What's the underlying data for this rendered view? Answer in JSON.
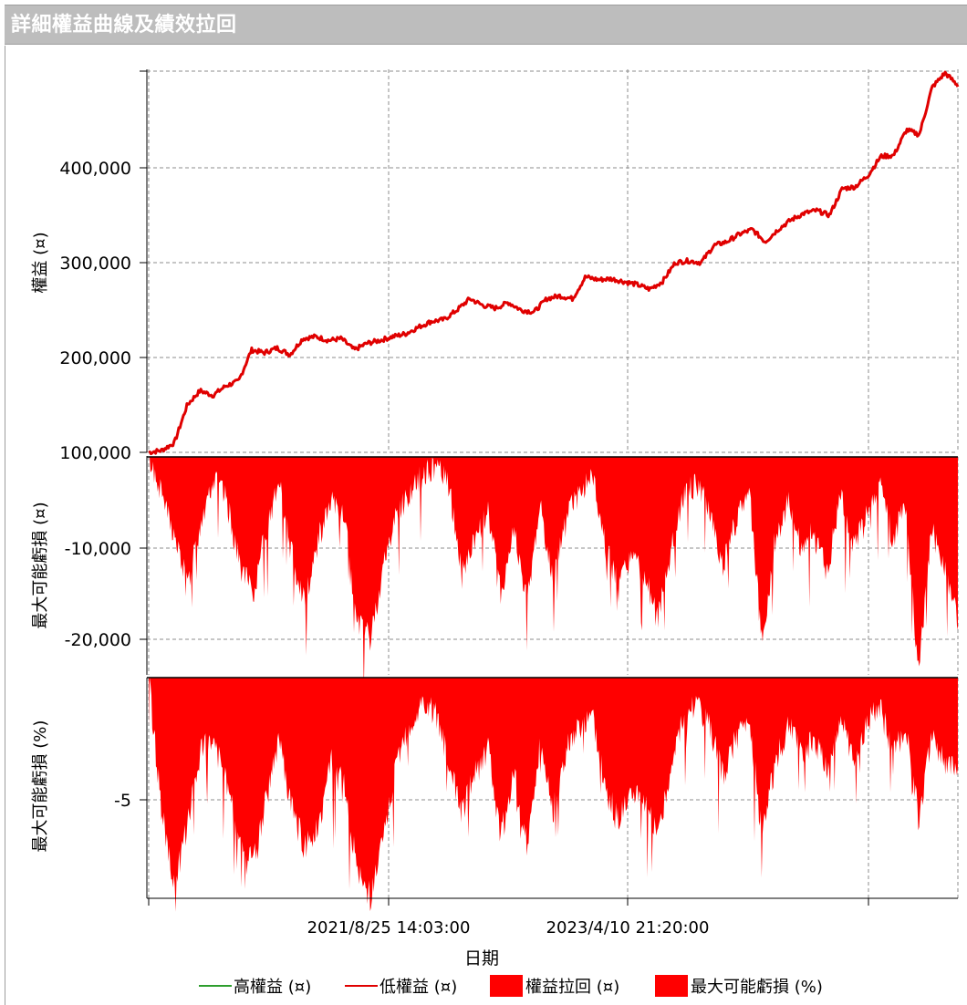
{
  "title": "詳細權益曲線及績效拉回",
  "chart_data": {
    "type": "area",
    "x_label": "日期",
    "x_ticks": [
      "2021/8/25 14:03:00",
      "2023/4/10 21:20:00"
    ],
    "panels": [
      {
        "name": "equity",
        "ylabel": "權益 (¤)",
        "yticks": [
          "100,000",
          "200,000",
          "300,000",
          "400,000"
        ],
        "ylim": [
          100000,
          500000
        ],
        "series": [
          {
            "name": "高權益 (¤)",
            "color": "#2e9e2e"
          },
          {
            "name": "低權益 (¤)",
            "color": "#e00000"
          }
        ],
        "values": [
          100000,
          102000,
          110000,
          150000,
          165000,
          160000,
          170000,
          175000,
          208000,
          205000,
          210000,
          203000,
          220000,
          222000,
          218000,
          220000,
          208000,
          215000,
          218000,
          222000,
          225000,
          232000,
          238000,
          240000,
          250000,
          262000,
          255000,
          252000,
          258000,
          250000,
          248000,
          262000,
          265000,
          262000,
          285000,
          282000,
          283000,
          280000,
          277000,
          272000,
          280000,
          300000,
          302000,
          300000,
          318000,
          322000,
          330000,
          335000,
          322000,
          335000,
          345000,
          352000,
          355000,
          350000,
          378000,
          380000,
          392000,
          412000,
          413000,
          440000,
          435000,
          485000,
          500000,
          487000
        ]
      },
      {
        "name": "drawdown_abs",
        "ylabel": "最大可能虧損 (¤)",
        "yticks": [
          "-10,000",
          "-20,000"
        ],
        "ylim": [
          -24000,
          0
        ],
        "series": [
          {
            "name": "權益拉回 (¤)",
            "color": "#ff0000"
          }
        ],
        "values": [
          0,
          -4000,
          -9000,
          -14000,
          -7000,
          -2000,
          -5000,
          -12000,
          -15000,
          -8000,
          -3000,
          -11000,
          -16000,
          -9000,
          -5000,
          -7000,
          -18000,
          -20000,
          -12000,
          -6000,
          -4000,
          -2000,
          -1000,
          -3000,
          -13000,
          -9000,
          -6000,
          -15000,
          -8000,
          -16000,
          -5000,
          -14000,
          -6000,
          -4000,
          -2000,
          -10000,
          -14000,
          -11000,
          -13000,
          -18000,
          -10000,
          -4000,
          -3000,
          -6000,
          -12000,
          -7000,
          -3000,
          -21000,
          -9000,
          -5000,
          -10000,
          -8000,
          -13000,
          -4000,
          -10000,
          -6000,
          -3000,
          -9000,
          -5000,
          -24000,
          -7000,
          -12000,
          -18000
        ]
      },
      {
        "name": "drawdown_pct",
        "ylabel": "最大可能虧損 (%)",
        "yticks": [
          "-5"
        ],
        "ylim": [
          -9,
          0
        ],
        "series": [
          {
            "name": "最大可能虧損 (%)",
            "color": "#ff0000"
          }
        ],
        "values": [
          0,
          -5.5,
          -8.5,
          -6,
          -3,
          -2.5,
          -4.5,
          -6.5,
          -7.5,
          -5,
          -2.5,
          -5.5,
          -7,
          -6,
          -3.5,
          -4.5,
          -8,
          -9,
          -6.5,
          -3.5,
          -2,
          -1,
          -1.5,
          -3.5,
          -5.5,
          -4,
          -3,
          -6.5,
          -4,
          -7,
          -2.5,
          -5.5,
          -3,
          -2,
          -1.5,
          -4.5,
          -6,
          -4.5,
          -5,
          -6.5,
          -4,
          -1.5,
          -1.2,
          -2,
          -4,
          -2.5,
          -1.5,
          -6.5,
          -3.5,
          -2,
          -3,
          -2.5,
          -4,
          -1.5,
          -3.5,
          -2,
          -1.2,
          -3,
          -2,
          -5.8,
          -2.5,
          -3.5,
          -3.8
        ]
      }
    ]
  }
}
